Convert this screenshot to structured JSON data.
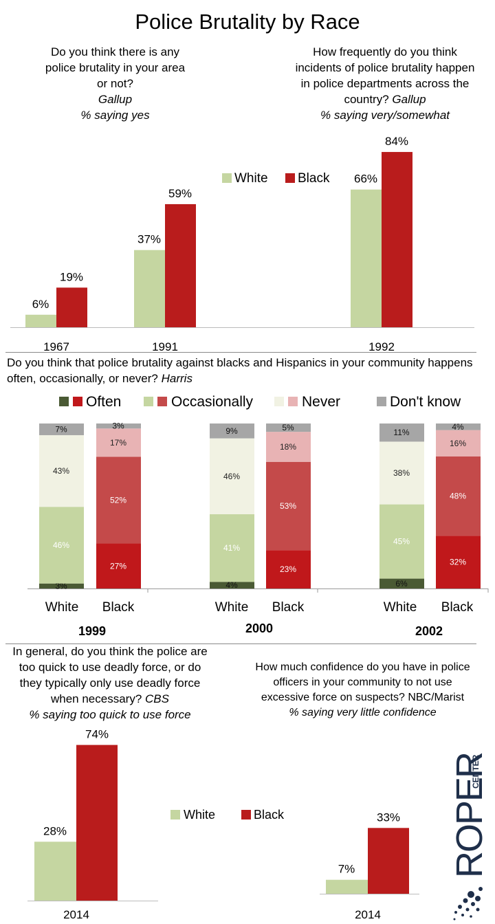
{
  "title": "Police Brutality by Race",
  "colors": {
    "white": "#c5d6a1",
    "black": "#b91c1c",
    "often_white": "#4a5a34",
    "often_black": "#c0181b",
    "occ_white": "#c5d6a1",
    "occ_black": "#c44a4a",
    "never_white": "#f1f2e3",
    "never_black": "#e8b3b4",
    "dk": "#a6a6a6"
  },
  "section1": {
    "q_left": {
      "lines": [
        "Do you think there is any",
        "police brutality in your area",
        "or not?"
      ],
      "source": "Gallup",
      "note": "% saying yes"
    },
    "q_right": {
      "lines": [
        "How frequently do you think",
        "incidents of police brutality happen",
        "in police departments  across the",
        "country?"
      ],
      "source": "Gallup",
      "note": "% saying very/somewhat"
    },
    "legend": {
      "white": "White",
      "black": "Black"
    }
  },
  "section2": {
    "question": "Do you think that police brutality against blacks and Hispanics in your community happens often, occasionally, or never?",
    "source": "Harris",
    "legend": {
      "often": "Often",
      "occasionally": "Occasionally",
      "never": "Never",
      "dk": "Don't know"
    },
    "group_labels": {
      "white": "White",
      "black": "Black"
    }
  },
  "section3": {
    "q_left": {
      "lines": [
        "In general, do you think the police are",
        "too quick to use deadly force, or do",
        "they typically only use deadly force",
        "when necessary?"
      ],
      "source": "CBS",
      "note": "% saying too quick to use force"
    },
    "q_right": {
      "lines": [
        "How much confidence do you have in police",
        "officers in your community to not use",
        "excessive force on suspects? NBC/Marist"
      ],
      "note": "% saying very little confidence"
    },
    "legend": {
      "white": "White",
      "black": "Black"
    }
  },
  "logo": {
    "top": "CENTER",
    "main": "ROPER"
  },
  "chart_data": [
    {
      "type": "bar",
      "categories": [
        "1967",
        "1991",
        "1992"
      ],
      "series": [
        {
          "name": "White",
          "values": [
            6,
            37,
            66
          ],
          "labels": [
            "6%",
            "37%",
            "66%"
          ]
        },
        {
          "name": "Black",
          "values": [
            19,
            59,
            84
          ],
          "labels": [
            "19%",
            "59%",
            "84%"
          ]
        }
      ],
      "ylim": [
        0,
        84
      ]
    },
    {
      "type": "bar",
      "stacked": true,
      "years": [
        "1999",
        "2000",
        "2002"
      ],
      "groups": [
        {
          "year": "1999",
          "race": "White",
          "often": 3,
          "occasionally": 46,
          "never": 43,
          "dk": 7
        },
        {
          "year": "1999",
          "race": "Black",
          "often": 27,
          "occasionally": 52,
          "never": 17,
          "dk": 3
        },
        {
          "year": "2000",
          "race": "White",
          "often": 4,
          "occasionally": 41,
          "never": 46,
          "dk": 9
        },
        {
          "year": "2000",
          "race": "Black",
          "often": 23,
          "occasionally": 53,
          "never": 18,
          "dk": 5
        },
        {
          "year": "2002",
          "race": "White",
          "often": 6,
          "occasionally": 45,
          "never": 38,
          "dk": 11
        },
        {
          "year": "2002",
          "race": "Black",
          "often": 32,
          "occasionally": 48,
          "never": 16,
          "dk": 4
        }
      ]
    },
    {
      "type": "bar",
      "categories": [
        "2014"
      ],
      "series": [
        {
          "name": "White",
          "values": [
            28
          ],
          "labels": [
            "28%"
          ]
        },
        {
          "name": "Black",
          "values": [
            74
          ],
          "labels": [
            "74%"
          ]
        }
      ]
    },
    {
      "type": "bar",
      "categories": [
        "2014"
      ],
      "series": [
        {
          "name": "White",
          "values": [
            7
          ],
          "labels": [
            "7%"
          ]
        },
        {
          "name": "Black",
          "values": [
            33
          ],
          "labels": [
            "33%"
          ]
        }
      ]
    }
  ]
}
